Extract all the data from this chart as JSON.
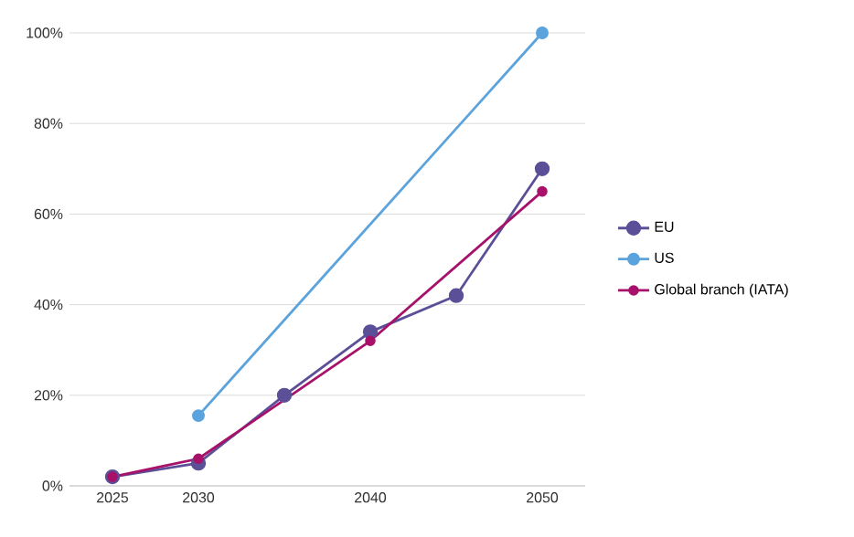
{
  "chart_data": {
    "type": "line",
    "xlim": [
      2022.5,
      2052.5
    ],
    "xticks": [
      2025,
      2030,
      2040,
      2050
    ],
    "ylim": [
      0,
      100
    ],
    "yticks": [
      {
        "value": 0,
        "label": "0%"
      },
      {
        "value": 20,
        "label": "20%"
      },
      {
        "value": 40,
        "label": "40%"
      },
      {
        "value": 60,
        "label": "60%"
      },
      {
        "value": 80,
        "label": "80%"
      },
      {
        "value": 100,
        "label": "100%"
      }
    ],
    "series": [
      {
        "name": "EU",
        "color": "#5b5098",
        "x": [
          2025,
          2030,
          2035,
          2040,
          2045,
          2050
        ],
        "values": [
          2,
          5,
          20,
          34,
          42,
          70
        ]
      },
      {
        "name": "US",
        "color": "#5ba3dc",
        "x": [
          2030,
          2050
        ],
        "values": [
          15.5,
          100
        ]
      },
      {
        "name": "Global branch (IATA)",
        "color": "#a8116a",
        "x": [
          2025,
          2030,
          2040,
          2050
        ],
        "values": [
          2,
          6,
          32,
          65
        ]
      }
    ],
    "grid": "y",
    "legend": "right",
    "marker": "circle",
    "line_style": "solid"
  }
}
